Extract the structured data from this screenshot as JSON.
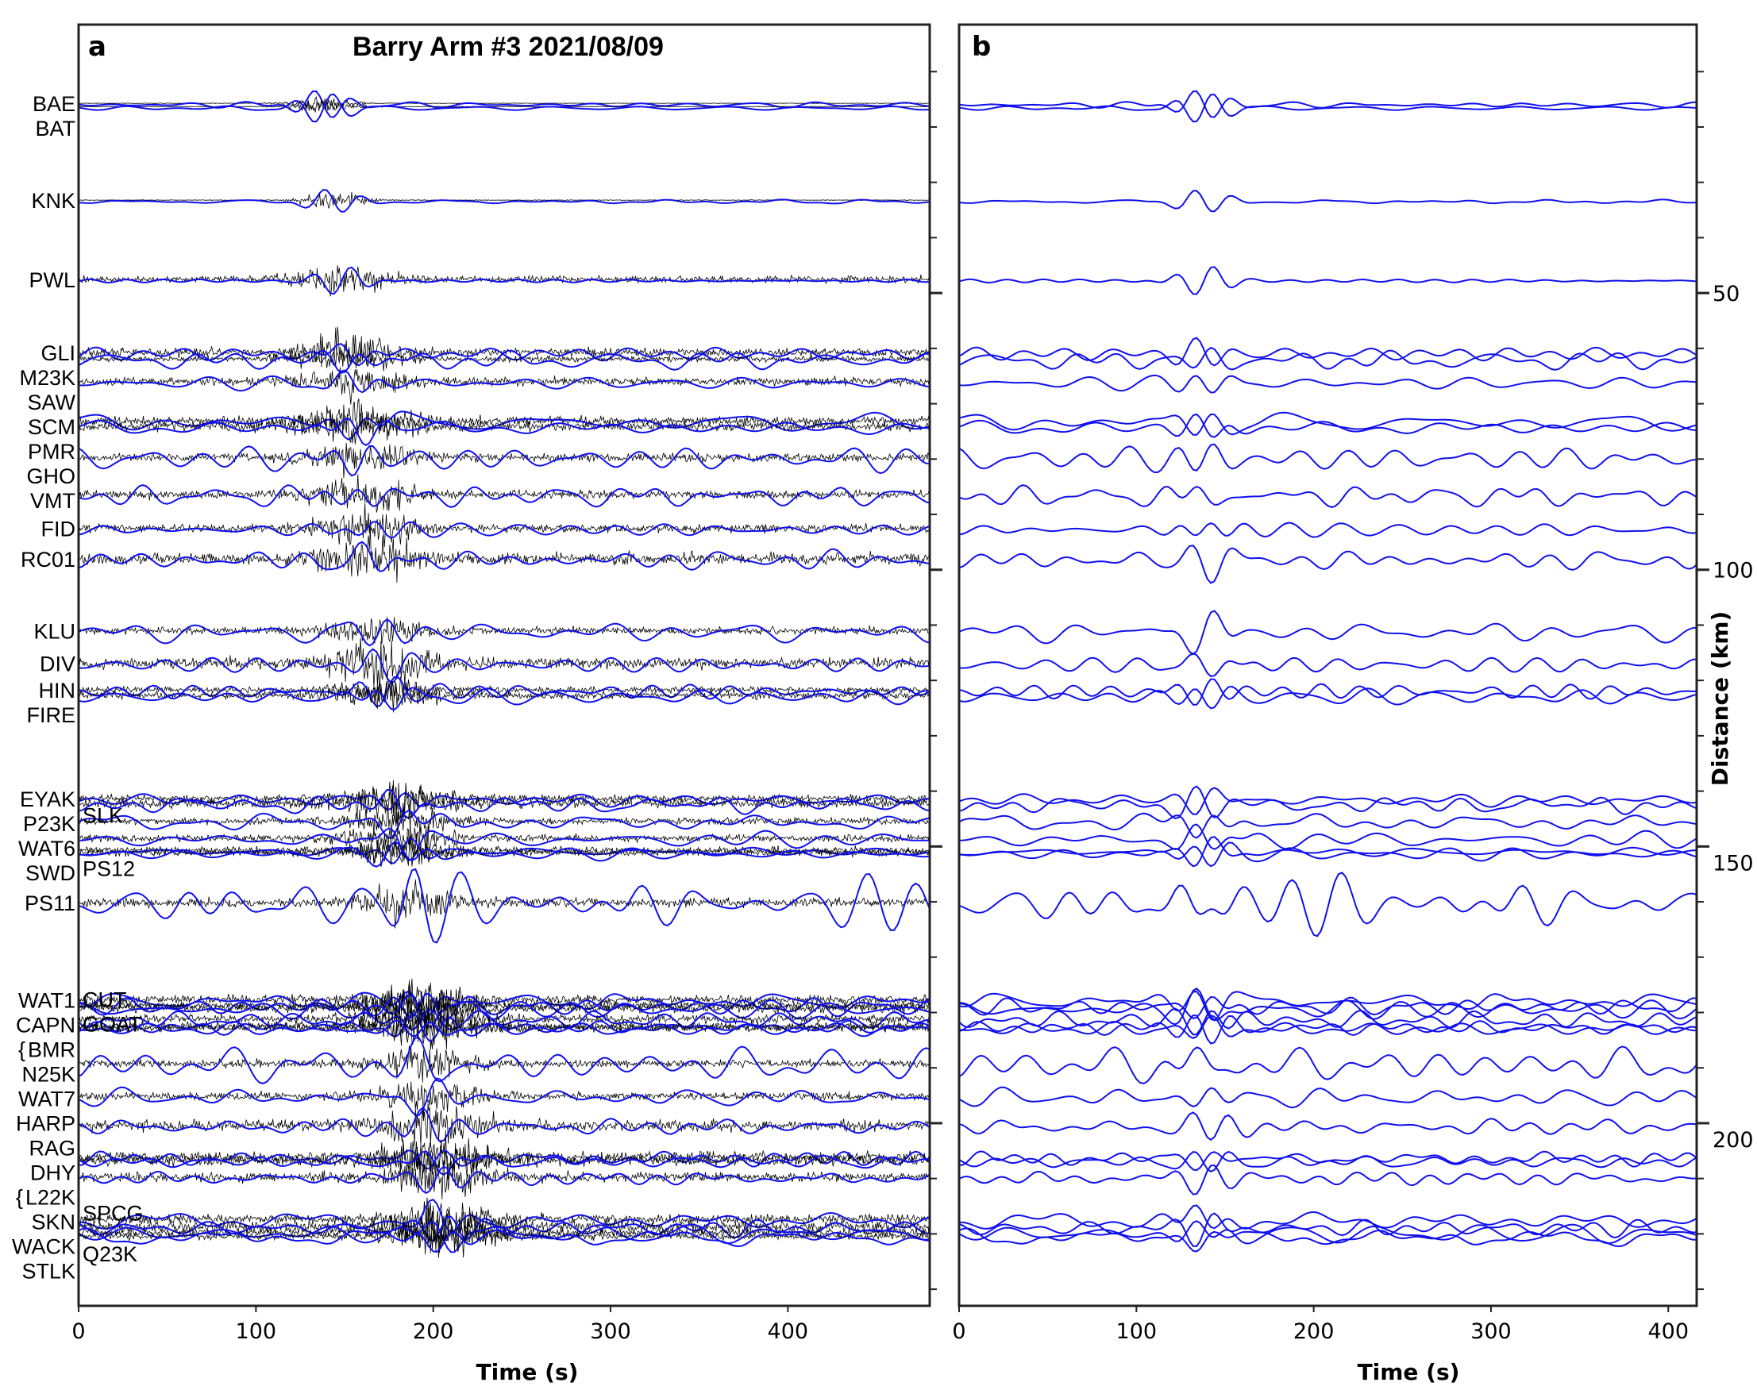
{
  "chart_data": [
    {
      "type": "line",
      "panel_label": "a",
      "title": "Barry Arm #3 2021/08/09",
      "xlabel": "Time (s)",
      "ylabel": "",
      "xlim": [
        0,
        480
      ],
      "xticks": [
        0,
        100,
        200,
        300,
        400
      ],
      "series_kinds": [
        "broadband (black)",
        "long-period filtered (blue)"
      ]
    },
    {
      "type": "line",
      "panel_label": "b",
      "title": "",
      "xlabel": "Time (s)",
      "ylabel": "Distance (km)",
      "xlim": [
        0,
        416
      ],
      "xticks": [
        0,
        100,
        200,
        300,
        400
      ],
      "series_kinds": [
        "long-period filtered (blue)"
      ]
    }
  ],
  "distance_axis": {
    "label": "Distance (km)",
    "ylim": [
      1.5,
      233
    ],
    "major_ticks": [
      50,
      100,
      150,
      200
    ],
    "minor_step": 10
  },
  "colors": {
    "broadband": "#000000",
    "filtered": "#1010ee",
    "axis": "#222222"
  },
  "stations": [
    {
      "name": "BAE",
      "distance_km": 16,
      "inside": false
    },
    {
      "name": "BAT",
      "distance_km": 16.6,
      "inside": false
    },
    {
      "name": "KNK",
      "distance_km": 33.5,
      "inside": false
    },
    {
      "name": "PWL",
      "distance_km": 47.8,
      "inside": false
    },
    {
      "name": "GLI",
      "distance_km": 61,
      "inside": false
    },
    {
      "name": "M23K",
      "distance_km": 62.2,
      "inside": false
    },
    {
      "name": "SAW",
      "distance_km": 66.3,
      "inside": false
    },
    {
      "name": "SCM",
      "distance_km": 73.4,
      "inside": false
    },
    {
      "name": "PMR",
      "distance_km": 74.4,
      "inside": false
    },
    {
      "name": "GHO",
      "distance_km": 80,
      "inside": false
    },
    {
      "name": "VMT",
      "distance_km": 86.7,
      "inside": false
    },
    {
      "name": "FID",
      "distance_km": 92.8,
      "inside": false
    },
    {
      "name": "RC01",
      "distance_km": 98.3,
      "inside": false
    },
    {
      "name": "KLU",
      "distance_km": 111.3,
      "inside": false
    },
    {
      "name": "DIV",
      "distance_km": 117.2,
      "inside": false
    },
    {
      "name": "HIN",
      "distance_km": 122,
      "inside": false
    },
    {
      "name": "FIRE",
      "distance_km": 123,
      "inside": false
    },
    {
      "name": "EYAK",
      "distance_km": 141.6,
      "inside": false
    },
    {
      "name": "P23K",
      "distance_km": 142.5,
      "inside": false
    },
    {
      "name": "SLK",
      "distance_km": 145.7,
      "inside": true
    },
    {
      "name": "WAT6",
      "distance_km": 148.8,
      "inside": false
    },
    {
      "name": "PS12",
      "distance_km": 151,
      "inside": true
    },
    {
      "name": "SWD",
      "distance_km": 151.4,
      "inside": false
    },
    {
      "name": "PS11",
      "distance_km": 160.4,
      "inside": false
    },
    {
      "name": "WAT1",
      "distance_km": 178,
      "inside": false
    },
    {
      "name": "CUT",
      "distance_km": 179,
      "inside": true
    },
    {
      "name": "CAPN",
      "distance_km": 179.5,
      "inside": false
    },
    {
      "name": "BMR",
      "distance_km": 181.4,
      "inside": false,
      "bracket": true
    },
    {
      "name": "N25K",
      "distance_km": 182.8,
      "inside": false
    },
    {
      "name": "GOAT",
      "distance_km": 183,
      "inside": true
    },
    {
      "name": "WAT7",
      "distance_km": 189.5,
      "inside": false
    },
    {
      "name": "HARP",
      "distance_km": 195.4,
      "inside": false
    },
    {
      "name": "RAG",
      "distance_km": 200.7,
      "inside": false
    },
    {
      "name": "DHY",
      "distance_km": 206.4,
      "inside": false
    },
    {
      "name": "L22K",
      "distance_km": 207,
      "inside": false,
      "bracket": true
    },
    {
      "name": "SKN",
      "distance_km": 210,
      "inside": false
    },
    {
      "name": "SPCG",
      "distance_km": 217.6,
      "inside": true
    },
    {
      "name": "WACK",
      "distance_km": 219,
      "inside": false
    },
    {
      "name": "STLK",
      "distance_km": 220,
      "inside": false
    },
    {
      "name": "Q23K",
      "distance_km": 220.7,
      "inside": true
    }
  ]
}
